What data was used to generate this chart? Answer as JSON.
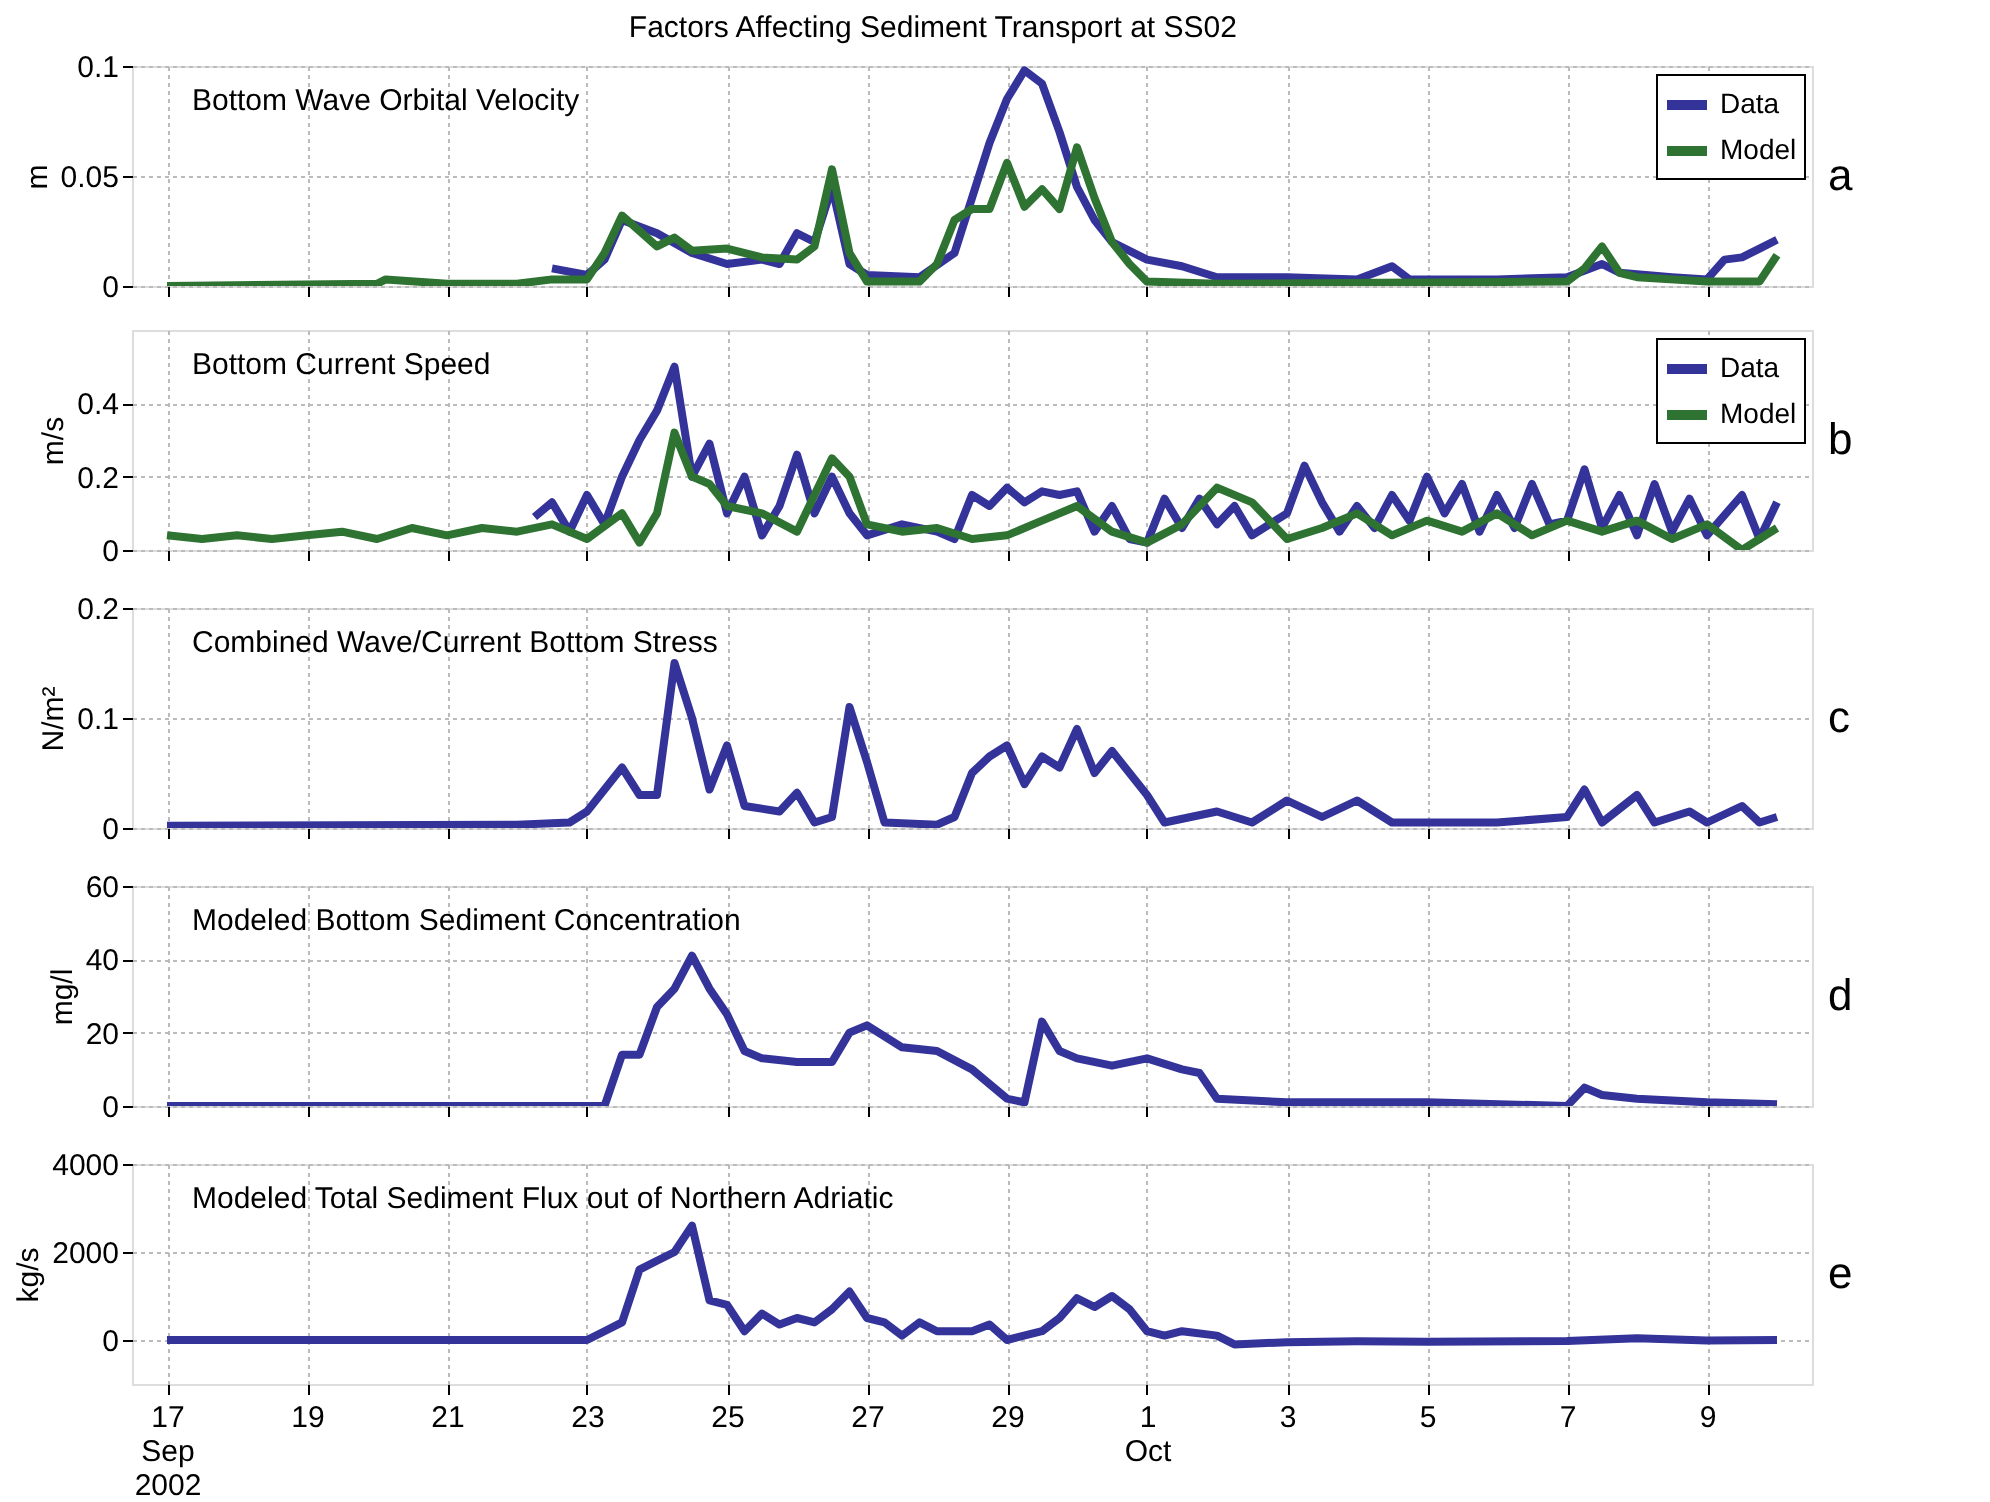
{
  "chart_data": [
    {
      "type": "line",
      "title": "Factors Affecting Sediment Transport at SS02",
      "ylabel": "m",
      "annotations": [
        "Bottom Wave Orbital Velocity",
        "a"
      ],
      "legend": "top right",
      "grid": true,
      "tick_labels": "y",
      "xlim": [
        "2002-09-16T12:00",
        "2002-10-10T12:00"
      ],
      "xticks": [
        {
          "value": "2002-09-17",
          "label": null
        },
        {
          "value": "2002-09-19",
          "label": null
        },
        {
          "value": "2002-09-21",
          "label": null
        },
        {
          "value": "2002-09-23",
          "label": null
        },
        {
          "value": "2002-09-25",
          "label": null
        },
        {
          "value": "2002-09-27",
          "label": null
        },
        {
          "value": "2002-09-29",
          "label": null
        },
        {
          "value": "2002-10-01",
          "label": null
        },
        {
          "value": "2002-10-03",
          "label": null
        },
        {
          "value": "2002-10-05",
          "label": null
        },
        {
          "value": "2002-10-07",
          "label": null
        },
        {
          "value": "2002-10-09",
          "label": null
        }
      ],
      "ylim": [
        0,
        0.1
      ],
      "yticks": [
        0,
        0.05,
        0.1
      ],
      "series": [
        {
          "name": "Data",
          "color": "#333399",
          "x": [
            "2002-09-22T12:00",
            "2002-09-23T00:00",
            "2002-09-23T06:00",
            "2002-09-23T12:00",
            "2002-09-24T00:00",
            "2002-09-24T12:00",
            "2002-09-25T00:00",
            "2002-09-25T12:00",
            "2002-09-25T18:00",
            "2002-09-26T00:00",
            "2002-09-26T06:00",
            "2002-09-26T12:00",
            "2002-09-26T18:00",
            "2002-09-27T00:00",
            "2002-09-27T18:00",
            "2002-09-28T06:00",
            "2002-09-28T12:00",
            "2002-09-28T18:00",
            "2002-09-29T00:00",
            "2002-09-29T06:00",
            "2002-09-29T12:00",
            "2002-09-29T18:00",
            "2002-09-30T00:00",
            "2002-09-30T06:00",
            "2002-09-30T12:00",
            "2002-10-01T00:00",
            "2002-10-01T12:00",
            "2002-10-02T00:00",
            "2002-10-03T00:00",
            "2002-10-04T00:00",
            "2002-10-04T12:00",
            "2002-10-04T18:00",
            "2002-10-06T00:00",
            "2002-10-07T00:00",
            "2002-10-07T12:00",
            "2002-10-07T18:00",
            "2002-10-08T12:00",
            "2002-10-09T00:00",
            "2002-10-09T06:00",
            "2002-10-09T12:00",
            "2002-10-09T18:00",
            "2002-10-10T00:00"
          ],
          "values": [
            0.008,
            0.005,
            0.012,
            0.03,
            0.024,
            0.015,
            0.01,
            0.012,
            0.01,
            0.024,
            0.02,
            0.045,
            0.01,
            0.005,
            0.004,
            0.015,
            0.04,
            0.065,
            0.085,
            0.098,
            0.092,
            0.07,
            0.045,
            0.03,
            0.02,
            0.012,
            0.009,
            0.004,
            0.004,
            0.003,
            0.009,
            0.003,
            0.003,
            0.004,
            0.01,
            0.006,
            0.004,
            0.003,
            0.012,
            0.013,
            0.017,
            0.021
          ]
        },
        {
          "name": "Model",
          "color": "#2e7332",
          "x": [
            "2002-09-17T00:00",
            "2002-09-20T00:00",
            "2002-09-20T03:00",
            "2002-09-21T00:00",
            "2002-09-22T00:00",
            "2002-09-22T12:00",
            "2002-09-23T00:00",
            "2002-09-23T06:00",
            "2002-09-23T12:00",
            "2002-09-23T18:00",
            "2002-09-24T00:00",
            "2002-09-24T06:00",
            "2002-09-24T12:00",
            "2002-09-25T00:00",
            "2002-09-25T12:00",
            "2002-09-26T00:00",
            "2002-09-26T06:00",
            "2002-09-26T12:00",
            "2002-09-26T18:00",
            "2002-09-27T00:00",
            "2002-09-27T18:00",
            "2002-09-28T00:00",
            "2002-09-28T06:00",
            "2002-09-28T12:00",
            "2002-09-28T18:00",
            "2002-09-29T00:00",
            "2002-09-29T06:00",
            "2002-09-29T12:00",
            "2002-09-29T18:00",
            "2002-09-30T00:00",
            "2002-09-30T06:00",
            "2002-09-30T12:00",
            "2002-09-30T18:00",
            "2002-10-01T00:00",
            "2002-10-02T00:00",
            "2002-10-07T00:00",
            "2002-10-07T06:00",
            "2002-10-07T12:00",
            "2002-10-07T18:00",
            "2002-10-08T00:00",
            "2002-10-09T00:00",
            "2002-10-09T18:00",
            "2002-10-10T00:00"
          ],
          "values": [
            0,
            0.001,
            0.003,
            0.001,
            0.001,
            0.003,
            0.003,
            0.015,
            0.032,
            0.025,
            0.018,
            0.022,
            0.016,
            0.017,
            0.013,
            0.012,
            0.018,
            0.053,
            0.015,
            0.002,
            0.002,
            0.01,
            0.03,
            0.035,
            0.035,
            0.056,
            0.036,
            0.044,
            0.035,
            0.063,
            0.04,
            0.02,
            0.01,
            0.002,
            0.001,
            0.002,
            0.008,
            0.018,
            0.006,
            0.004,
            0.002,
            0.002,
            0.014
          ]
        }
      ]
    },
    {
      "type": "line",
      "ylabel": "m/s",
      "annotations": [
        "Bottom Current Speed",
        "b"
      ],
      "legend": "top right",
      "grid": true,
      "tick_labels": "y",
      "xlim": [
        "2002-09-16T12:00",
        "2002-10-10T12:00"
      ],
      "xticks": [
        {
          "value": "2002-09-17",
          "label": null
        },
        {
          "value": "2002-09-19",
          "label": null
        },
        {
          "value": "2002-09-21",
          "label": null
        },
        {
          "value": "2002-09-23",
          "label": null
        },
        {
          "value": "2002-09-25",
          "label": null
        },
        {
          "value": "2002-09-27",
          "label": null
        },
        {
          "value": "2002-09-29",
          "label": null
        },
        {
          "value": "2002-10-01",
          "label": null
        },
        {
          "value": "2002-10-03",
          "label": null
        },
        {
          "value": "2002-10-05",
          "label": null
        },
        {
          "value": "2002-10-07",
          "label": null
        },
        {
          "value": "2002-10-09",
          "label": null
        }
      ],
      "ylim": [
        0,
        0.6
      ],
      "yticks": [
        0,
        0.2,
        0.4
      ],
      "series": [
        {
          "name": "Data",
          "color": "#333399",
          "x": [
            "2002-09-22T06:00",
            "2002-09-22T12:00",
            "2002-09-22T18:00",
            "2002-09-23T00:00",
            "2002-09-23T06:00",
            "2002-09-23T12:00",
            "2002-09-23T18:00",
            "2002-09-24T00:00",
            "2002-09-24T06:00",
            "2002-09-24T12:00",
            "2002-09-24T18:00",
            "2002-09-25T00:00",
            "2002-09-25T06:00",
            "2002-09-25T12:00",
            "2002-09-25T18:00",
            "2002-09-26T00:00",
            "2002-09-26T06:00",
            "2002-09-26T12:00",
            "2002-09-26T18:00",
            "2002-09-27T00:00",
            "2002-09-27T12:00",
            "2002-09-28T00:00",
            "2002-09-28T06:00",
            "2002-09-28T12:00",
            "2002-09-28T18:00",
            "2002-09-29T00:00",
            "2002-09-29T06:00",
            "2002-09-29T12:00",
            "2002-09-29T18:00",
            "2002-09-30T00:00",
            "2002-09-30T06:00",
            "2002-09-30T12:00",
            "2002-09-30T18:00",
            "2002-10-01T00:00",
            "2002-10-01T06:00",
            "2002-10-01T12:00",
            "2002-10-01T18:00",
            "2002-10-02T00:00",
            "2002-10-02T06:00",
            "2002-10-02T12:00",
            "2002-10-03T00:00",
            "2002-10-03T06:00",
            "2002-10-03T12:00",
            "2002-10-03T18:00",
            "2002-10-04T00:00",
            "2002-10-04T06:00",
            "2002-10-04T12:00",
            "2002-10-04T18:00",
            "2002-10-05T00:00",
            "2002-10-05T06:00",
            "2002-10-05T12:00",
            "2002-10-05T18:00",
            "2002-10-06T00:00",
            "2002-10-06T06:00",
            "2002-10-06T12:00",
            "2002-10-06T18:00",
            "2002-10-07T00:00",
            "2002-10-07T06:00",
            "2002-10-07T12:00",
            "2002-10-07T18:00",
            "2002-10-08T00:00",
            "2002-10-08T06:00",
            "2002-10-08T12:00",
            "2002-10-08T18:00",
            "2002-10-09T00:00",
            "2002-10-09T12:00",
            "2002-10-09T18:00",
            "2002-10-10T00:00"
          ],
          "values": [
            0.09,
            0.13,
            0.05,
            0.15,
            0.07,
            0.2,
            0.3,
            0.38,
            0.5,
            0.2,
            0.29,
            0.1,
            0.2,
            0.04,
            0.12,
            0.26,
            0.1,
            0.2,
            0.1,
            0.04,
            0.07,
            0.05,
            0.03,
            0.15,
            0.12,
            0.17,
            0.13,
            0.16,
            0.15,
            0.16,
            0.05,
            0.12,
            0.03,
            0.02,
            0.14,
            0.06,
            0.14,
            0.07,
            0.12,
            0.04,
            0.1,
            0.23,
            0.13,
            0.05,
            0.12,
            0.06,
            0.15,
            0.08,
            0.2,
            0.1,
            0.18,
            0.05,
            0.15,
            0.06,
            0.18,
            0.07,
            0.08,
            0.22,
            0.06,
            0.15,
            0.04,
            0.18,
            0.05,
            0.14,
            0.04,
            0.15,
            0.03,
            0.13
          ]
        },
        {
          "name": "Model",
          "color": "#2e7332",
          "x": [
            "2002-09-17T00:00",
            "2002-09-17T12:00",
            "2002-09-18T00:00",
            "2002-09-18T12:00",
            "2002-09-19T00:00",
            "2002-09-19T12:00",
            "2002-09-20T00:00",
            "2002-09-20T12:00",
            "2002-09-21T00:00",
            "2002-09-21T12:00",
            "2002-09-22T00:00",
            "2002-09-22T12:00",
            "2002-09-23T00:00",
            "2002-09-23T12:00",
            "2002-09-23T18:00",
            "2002-09-24T00:00",
            "2002-09-24T06:00",
            "2002-09-24T12:00",
            "2002-09-24T18:00",
            "2002-09-25T00:00",
            "2002-09-25T12:00",
            "2002-09-26T00:00",
            "2002-09-26T12:00",
            "2002-09-26T18:00",
            "2002-09-27T00:00",
            "2002-09-27T12:00",
            "2002-09-28T00:00",
            "2002-09-28T12:00",
            "2002-09-29T00:00",
            "2002-09-29T12:00",
            "2002-09-30T00:00",
            "2002-09-30T12:00",
            "2002-10-01T00:00",
            "2002-10-01T12:00",
            "2002-10-02T00:00",
            "2002-10-02T12:00",
            "2002-10-03T00:00",
            "2002-10-03T12:00",
            "2002-10-04T00:00",
            "2002-10-04T12:00",
            "2002-10-05T00:00",
            "2002-10-05T12:00",
            "2002-10-06T00:00",
            "2002-10-06T12:00",
            "2002-10-07T00:00",
            "2002-10-07T12:00",
            "2002-10-08T00:00",
            "2002-10-08T12:00",
            "2002-10-09T00:00",
            "2002-10-09T12:00",
            "2002-10-10T00:00"
          ],
          "values": [
            0.04,
            0.03,
            0.04,
            0.03,
            0.04,
            0.05,
            0.03,
            0.06,
            0.04,
            0.06,
            0.05,
            0.07,
            0.03,
            0.1,
            0.02,
            0.1,
            0.32,
            0.2,
            0.18,
            0.12,
            0.1,
            0.05,
            0.25,
            0.2,
            0.07,
            0.05,
            0.06,
            0.03,
            0.04,
            0.08,
            0.12,
            0.05,
            0.02,
            0.07,
            0.17,
            0.13,
            0.03,
            0.06,
            0.1,
            0.04,
            0.08,
            0.05,
            0.1,
            0.04,
            0.08,
            0.05,
            0.08,
            0.03,
            0.07,
            0.0,
            0.06
          ]
        }
      ]
    },
    {
      "type": "line",
      "ylabel": "N/m²",
      "annotations": [
        "Combined Wave/Current Bottom Stress",
        "c"
      ],
      "grid": true,
      "tick_labels": "y",
      "xlim": [
        "2002-09-16T12:00",
        "2002-10-10T12:00"
      ],
      "xticks": [
        {
          "value": "2002-09-17",
          "label": null
        },
        {
          "value": "2002-09-19",
          "label": null
        },
        {
          "value": "2002-09-21",
          "label": null
        },
        {
          "value": "2002-09-23",
          "label": null
        },
        {
          "value": "2002-09-25",
          "label": null
        },
        {
          "value": "2002-09-27",
          "label": null
        },
        {
          "value": "2002-09-29",
          "label": null
        },
        {
          "value": "2002-10-01",
          "label": null
        },
        {
          "value": "2002-10-03",
          "label": null
        },
        {
          "value": "2002-10-05",
          "label": null
        },
        {
          "value": "2002-10-07",
          "label": null
        },
        {
          "value": "2002-10-09",
          "label": null
        }
      ],
      "ylim": [
        0,
        0.2
      ],
      "yticks": [
        0,
        0.1,
        0.2
      ],
      "series": [
        {
          "color": "#333399",
          "x": [
            "2002-09-17T00:00",
            "2002-09-22T00:00",
            "2002-09-22T18:00",
            "2002-09-23T00:00",
            "2002-09-23T12:00",
            "2002-09-23T18:00",
            "2002-09-24T00:00",
            "2002-09-24T06:00",
            "2002-09-24T12:00",
            "2002-09-24T18:00",
            "2002-09-25T00:00",
            "2002-09-25T06:00",
            "2002-09-25T18:00",
            "2002-09-26T00:00",
            "2002-09-26T06:00",
            "2002-09-26T12:00",
            "2002-09-26T18:00",
            "2002-09-27T00:00",
            "2002-09-27T06:00",
            "2002-09-28T00:00",
            "2002-09-28T06:00",
            "2002-09-28T12:00",
            "2002-09-28T18:00",
            "2002-09-29T00:00",
            "2002-09-29T06:00",
            "2002-09-29T12:00",
            "2002-09-29T18:00",
            "2002-09-30T00:00",
            "2002-09-30T06:00",
            "2002-09-30T12:00",
            "2002-10-01T00:00",
            "2002-10-01T06:00",
            "2002-10-02T00:00",
            "2002-10-02T12:00",
            "2002-10-03T00:00",
            "2002-10-03T12:00",
            "2002-10-04T00:00",
            "2002-10-04T12:00",
            "2002-10-06T00:00",
            "2002-10-07T00:00",
            "2002-10-07T06:00",
            "2002-10-07T12:00",
            "2002-10-08T00:00",
            "2002-10-08T06:00",
            "2002-10-08T18:00",
            "2002-10-09T00:00",
            "2002-10-09T12:00",
            "2002-10-09T18:00",
            "2002-10-10T00:00"
          ],
          "values": [
            0.002,
            0.003,
            0.005,
            0.015,
            0.055,
            0.03,
            0.03,
            0.15,
            0.1,
            0.035,
            0.075,
            0.02,
            0.015,
            0.032,
            0.005,
            0.01,
            0.11,
            0.06,
            0.005,
            0.003,
            0.01,
            0.05,
            0.065,
            0.075,
            0.04,
            0.065,
            0.055,
            0.09,
            0.05,
            0.07,
            0.03,
            0.005,
            0.015,
            0.005,
            0.025,
            0.01,
            0.025,
            0.005,
            0.005,
            0.01,
            0.035,
            0.005,
            0.03,
            0.005,
            0.015,
            0.005,
            0.02,
            0.005,
            0.01
          ]
        }
      ]
    },
    {
      "type": "line",
      "ylabel": "mg/l",
      "annotations": [
        "Modeled Bottom Sediment Concentration",
        "d"
      ],
      "grid": true,
      "tick_labels": "y",
      "xlim": [
        "2002-09-16T12:00",
        "2002-10-10T12:00"
      ],
      "xticks": [
        {
          "value": "2002-09-17",
          "label": null
        },
        {
          "value": "2002-09-19",
          "label": null
        },
        {
          "value": "2002-09-21",
          "label": null
        },
        {
          "value": "2002-09-23",
          "label": null
        },
        {
          "value": "2002-09-25",
          "label": null
        },
        {
          "value": "2002-09-27",
          "label": null
        },
        {
          "value": "2002-09-29",
          "label": null
        },
        {
          "value": "2002-10-01",
          "label": null
        },
        {
          "value": "2002-10-03",
          "label": null
        },
        {
          "value": "2002-10-05",
          "label": null
        },
        {
          "value": "2002-10-07",
          "label": null
        },
        {
          "value": "2002-10-09",
          "label": null
        }
      ],
      "ylim": [
        0,
        60
      ],
      "yticks": [
        0,
        20,
        40,
        60
      ],
      "series": [
        {
          "color": "#333399",
          "x": [
            "2002-09-17T00:00",
            "2002-09-23T06:00",
            "2002-09-23T12:00",
            "2002-09-23T18:00",
            "2002-09-24T00:00",
            "2002-09-24T06:00",
            "2002-09-24T12:00",
            "2002-09-24T18:00",
            "2002-09-25T00:00",
            "2002-09-25T06:00",
            "2002-09-25T12:00",
            "2002-09-26T00:00",
            "2002-09-26T12:00",
            "2002-09-26T18:00",
            "2002-09-27T00:00",
            "2002-09-27T12:00",
            "2002-09-28T00:00",
            "2002-09-28T12:00",
            "2002-09-29T00:00",
            "2002-09-29T06:00",
            "2002-09-29T12:00",
            "2002-09-29T18:00",
            "2002-09-30T00:00",
            "2002-09-30T12:00",
            "2002-10-01T00:00",
            "2002-10-01T12:00",
            "2002-10-01T18:00",
            "2002-10-02T00:00",
            "2002-10-03T00:00",
            "2002-10-05T00:00",
            "2002-10-07T00:00",
            "2002-10-07T06:00",
            "2002-10-07T12:00",
            "2002-10-08T00:00",
            "2002-10-09T00:00",
            "2002-10-10T00:00"
          ],
          "values": [
            0,
            0,
            14,
            14,
            27,
            32,
            41,
            32,
            25,
            15,
            13,
            12,
            12,
            20,
            22,
            16,
            15,
            10,
            2,
            1,
            23,
            15,
            13,
            11,
            13,
            10,
            9,
            2,
            1,
            1,
            0,
            5,
            3,
            2,
            1,
            0.5
          ]
        }
      ]
    },
    {
      "type": "line",
      "ylabel": "kg/s",
      "annotations": [
        "Modeled Total Sediment Flux out of Northern Adriatic",
        "e"
      ],
      "grid": true,
      "xlim": [
        "2002-09-16T12:00",
        "2002-10-10T12:00"
      ],
      "xticks": [
        {
          "value": "2002-09-17",
          "label": "17\nSep\n2002"
        },
        {
          "value": "2002-09-19",
          "label": "19"
        },
        {
          "value": "2002-09-21",
          "label": "21"
        },
        {
          "value": "2002-09-23",
          "label": "23"
        },
        {
          "value": "2002-09-25",
          "label": "25"
        },
        {
          "value": "2002-09-27",
          "label": "27"
        },
        {
          "value": "2002-09-29",
          "label": "29"
        },
        {
          "value": "2002-10-01",
          "label": "1\nOct"
        },
        {
          "value": "2002-10-03",
          "label": "3"
        },
        {
          "value": "2002-10-05",
          "label": "5"
        },
        {
          "value": "2002-10-07",
          "label": "7"
        },
        {
          "value": "2002-10-09",
          "label": "9"
        }
      ],
      "ylim": [
        -1000,
        4000
      ],
      "yticks": [
        0,
        2000,
        4000
      ],
      "series": [
        {
          "color": "#333399",
          "x": [
            "2002-09-17T00:00",
            "2002-09-23T00:00",
            "2002-09-23T06:00",
            "2002-09-23T12:00",
            "2002-09-23T18:00",
            "2002-09-24T00:00",
            "2002-09-24T06:00",
            "2002-09-24T12:00",
            "2002-09-24T18:00",
            "2002-09-25T00:00",
            "2002-09-25T06:00",
            "2002-09-25T12:00",
            "2002-09-25T18:00",
            "2002-09-26T00:00",
            "2002-09-26T06:00",
            "2002-09-26T12:00",
            "2002-09-26T18:00",
            "2002-09-27T00:00",
            "2002-09-27T06:00",
            "2002-09-27T12:00",
            "2002-09-27T18:00",
            "2002-09-28T00:00",
            "2002-09-28T12:00",
            "2002-09-28T18:00",
            "2002-09-29T00:00",
            "2002-09-29T12:00",
            "2002-09-29T18:00",
            "2002-09-30T00:00",
            "2002-09-30T06:00",
            "2002-09-30T12:00",
            "2002-09-30T18:00",
            "2002-10-01T00:00",
            "2002-10-01T06:00",
            "2002-10-01T12:00",
            "2002-10-02T00:00",
            "2002-10-02T06:00",
            "2002-10-03T00:00",
            "2002-10-04T00:00",
            "2002-10-05T00:00",
            "2002-10-07T00:00",
            "2002-10-08T00:00",
            "2002-10-09T00:00",
            "2002-10-10T00:00"
          ],
          "values": [
            0,
            0,
            200,
            400,
            1600,
            1800,
            2000,
            2600,
            900,
            800,
            200,
            600,
            350,
            500,
            400,
            700,
            1100,
            500,
            400,
            100,
            400,
            200,
            200,
            350,
            0,
            200,
            500,
            950,
            750,
            1000,
            700,
            200,
            100,
            200,
            100,
            -100,
            -50,
            -30,
            -40,
            -20,
            40,
            -10,
            0
          ]
        }
      ]
    }
  ]
}
